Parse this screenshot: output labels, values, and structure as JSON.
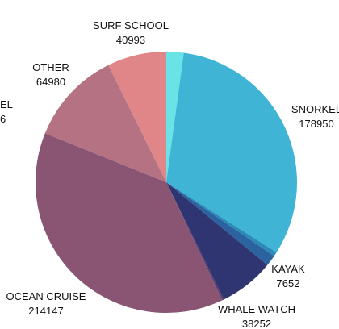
{
  "chart_data": {
    "type": "pie",
    "slices": [
      {
        "label": "",
        "value": 12000,
        "color": "#6ae3e6"
      },
      {
        "label": "SNORKEL",
        "value": 178950,
        "color": "#40b4d4"
      },
      {
        "label": "",
        "value": 3000,
        "color": "#2b8ab8"
      },
      {
        "label": "KAYAK",
        "value": 7652,
        "color": "#2a63a0"
      },
      {
        "label": "WHALE WATCH",
        "value": 38252,
        "color": "#2e3570"
      },
      {
        "label": "",
        "value": 1200,
        "color": "#5a3f72"
      },
      {
        "label": "OCEAN CRUISE",
        "value": 214147,
        "color": "#8a5473"
      },
      {
        "label": "OTHER",
        "value": 64980,
        "color": "#b57283"
      },
      {
        "label": "SURF SCHOOL",
        "value": 40993,
        "color": "#e08588"
      }
    ],
    "cut_off_label": {
      "text": "EL",
      "value_text": "6"
    }
  }
}
